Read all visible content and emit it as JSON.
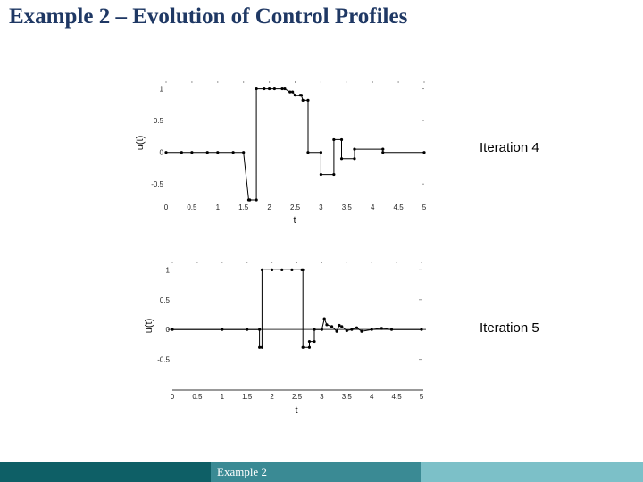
{
  "slide": {
    "title": "Example 2 – Evolution of Control Profiles",
    "footer_text": "Example 2",
    "colors": {
      "title": "#1f3864",
      "footer_dark": "#0e5f66",
      "footer_mid": "#3a8a94",
      "footer_light": "#7cc0c8"
    }
  },
  "chart_data": [
    {
      "type": "line",
      "label": "Iteration 4",
      "xlabel": "t",
      "ylabel": "u(t)",
      "xlim": [
        0,
        5
      ],
      "ylim": [
        -0.75,
        1.05
      ],
      "xticks": [
        "0",
        "0.5",
        "1",
        "1.5",
        "2",
        "2.5",
        "3",
        "3.5",
        "4",
        "4.5",
        "5"
      ],
      "yticks": [
        {
          "value": 1,
          "label": "1"
        },
        {
          "value": 0.5,
          "label": "0.5"
        },
        {
          "value": 0,
          "label": "0"
        },
        {
          "value": -0.5,
          "label": "-0.5"
        }
      ],
      "series": [
        {
          "x": [
            0,
            0.3,
            0.5,
            0.8,
            1.0,
            1.3,
            1.5,
            1.6,
            1.62,
            1.62,
            1.75,
            1.75,
            1.9,
            2.0,
            2.1,
            2.25,
            2.3,
            2.4,
            2.45,
            2.5,
            2.6,
            2.62,
            2.65,
            2.75,
            2.75,
            3.0,
            3.0,
            3.25,
            3.25,
            3.4,
            3.4,
            3.65,
            3.65,
            4.2,
            4.2,
            5.0
          ],
          "y": [
            0,
            0,
            0,
            0,
            0,
            0,
            0,
            -0.75,
            -0.75,
            -0.75,
            -0.75,
            1.0,
            1.0,
            1.0,
            1.0,
            1.0,
            1.0,
            0.95,
            0.95,
            0.9,
            0.9,
            0.9,
            0.82,
            0.82,
            0.0,
            0.0,
            -0.35,
            -0.35,
            0.2,
            0.2,
            -0.1,
            -0.1,
            0.05,
            0.05,
            0.0,
            0.0
          ]
        }
      ]
    },
    {
      "type": "line",
      "label": "Iteration 5",
      "xlabel": "t",
      "ylabel": "u(t)",
      "xlim": [
        0,
        5
      ],
      "ylim": [
        -0.85,
        1.05
      ],
      "xticks": [
        "0",
        "0.5",
        "1",
        "1.5",
        "2",
        "2.5",
        "3",
        "3.5",
        "4",
        "4.5",
        "5"
      ],
      "yticks": [
        {
          "value": 1,
          "label": "1"
        },
        {
          "value": 0.5,
          "label": "0.5"
        },
        {
          "value": 0,
          "label": "0"
        },
        {
          "value": -0.5,
          "label": "-0.5"
        }
      ],
      "series": [
        {
          "x": [
            0,
            1.0,
            1.5,
            1.75,
            1.75,
            1.8,
            1.8,
            2.0,
            2.2,
            2.4,
            2.6,
            2.62,
            2.62,
            2.75,
            2.75,
            2.85,
            2.85,
            3.0,
            3.05,
            3.1,
            3.2,
            3.3,
            3.35,
            3.4,
            3.5,
            3.6,
            3.7,
            3.8,
            4.0,
            4.2,
            4.4,
            5.0
          ],
          "y": [
            0,
            0,
            0,
            0,
            -0.3,
            -0.3,
            1.0,
            1.0,
            1.0,
            1.0,
            1.0,
            1.0,
            -0.3,
            -0.3,
            -0.2,
            -0.2,
            0.0,
            0.0,
            0.18,
            0.08,
            0.05,
            -0.03,
            0.07,
            0.05,
            -0.02,
            0.0,
            0.03,
            -0.03,
            0.0,
            0.02,
            0.0,
            0.0
          ]
        }
      ]
    }
  ]
}
